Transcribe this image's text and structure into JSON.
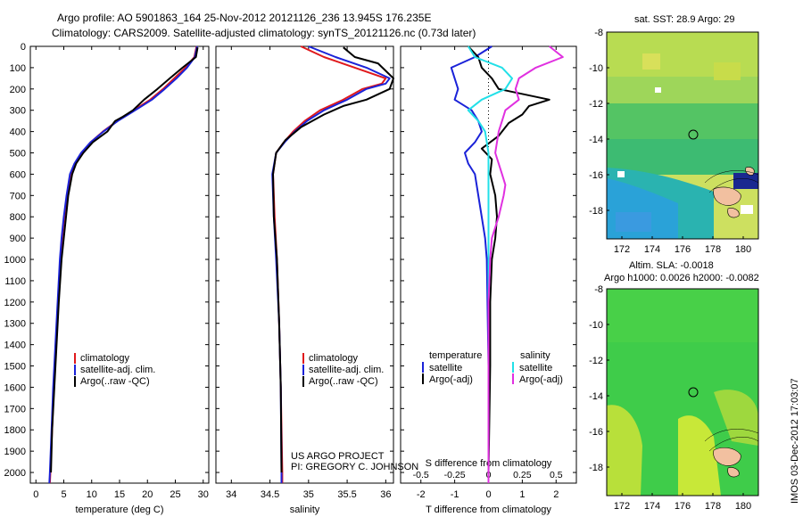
{
  "header": {
    "line1": "Argo profile: AO 5901863_164 25-Nov-2012 20121126_236 13.945S 176.235E",
    "line2": "Climatology: CARS2009. Satellite-adjusted climatology: synTS_20121126.nc (0.73d later)"
  },
  "colors": {
    "climatology": "#e0191c",
    "satellite": "#1a22d8",
    "argo": "#000000",
    "sat_salinity": "#22e0e8",
    "argo_salinity": "#e030e0"
  },
  "depth_axis": {
    "range": [
      0,
      2050
    ],
    "ticks": [
      0,
      100,
      200,
      300,
      400,
      500,
      600,
      700,
      800,
      900,
      1000,
      1100,
      1200,
      1300,
      1400,
      1500,
      1600,
      1700,
      1800,
      1900,
      2000
    ]
  },
  "chart_data": [
    {
      "type": "line",
      "xlabel": "temperature (deg C)",
      "xlim": [
        -1,
        31
      ],
      "xticks": [
        0,
        5,
        10,
        15,
        20,
        25,
        30
      ],
      "legend": {
        "position": "lower-left",
        "entries": [
          "climatology",
          "satellite-adj. clim.",
          "Argo(..raw -QC)"
        ]
      },
      "series": [
        {
          "name": "climatology",
          "color": "#e0191c",
          "points": [
            [
              28.8,
              0
            ],
            [
              28.4,
              50
            ],
            [
              26.8,
              100
            ],
            [
              24.8,
              150
            ],
            [
              22.8,
              200
            ],
            [
              20.5,
              250
            ],
            [
              17.5,
              300
            ],
            [
              14.6,
              350
            ],
            [
              12.0,
              400
            ],
            [
              9.8,
              450
            ],
            [
              8.2,
              500
            ],
            [
              7.0,
              550
            ],
            [
              6.2,
              600
            ],
            [
              5.6,
              700
            ],
            [
              5.1,
              800
            ],
            [
              4.7,
              900
            ],
            [
              4.4,
              1000
            ],
            [
              4.0,
              1200
            ],
            [
              3.6,
              1400
            ],
            [
              3.2,
              1600
            ],
            [
              2.9,
              1800
            ],
            [
              2.6,
              2000
            ],
            [
              2.5,
              2050
            ]
          ]
        },
        {
          "name": "satellite-adj. clim.",
          "color": "#1a22d8",
          "points": [
            [
              28.9,
              0
            ],
            [
              28.5,
              50
            ],
            [
              27.1,
              100
            ],
            [
              25.2,
              150
            ],
            [
              23.1,
              200
            ],
            [
              20.8,
              250
            ],
            [
              17.8,
              300
            ],
            [
              14.7,
              350
            ],
            [
              12.1,
              400
            ],
            [
              9.8,
              450
            ],
            [
              8.1,
              500
            ],
            [
              6.9,
              550
            ],
            [
              6.1,
              600
            ],
            [
              5.5,
              700
            ],
            [
              5.0,
              800
            ],
            [
              4.6,
              900
            ],
            [
              4.3,
              1000
            ],
            [
              3.9,
              1200
            ],
            [
              3.5,
              1400
            ],
            [
              3.1,
              1600
            ],
            [
              2.8,
              1800
            ],
            [
              2.5,
              2000
            ],
            [
              2.4,
              2050
            ]
          ]
        },
        {
          "name": "Argo(..raw -QC)",
          "color": "#000000",
          "points": [
            [
              29.0,
              5
            ],
            [
              28.7,
              50
            ],
            [
              26.3,
              100
            ],
            [
              24.0,
              150
            ],
            [
              21.8,
              200
            ],
            [
              19.4,
              250
            ],
            [
              17.4,
              300
            ],
            [
              15.6,
              330
            ],
            [
              14.2,
              350
            ],
            [
              12.8,
              400
            ],
            [
              10.2,
              450
            ],
            [
              8.5,
              500
            ],
            [
              7.2,
              550
            ],
            [
              6.5,
              600
            ],
            [
              5.8,
              700
            ],
            [
              5.4,
              800
            ],
            [
              5.0,
              900
            ],
            [
              4.6,
              1000
            ],
            [
              4.1,
              1200
            ],
            [
              3.7,
              1400
            ],
            [
              3.3,
              1600
            ],
            [
              2.9,
              1800
            ],
            [
              2.7,
              2000
            ]
          ]
        }
      ]
    },
    {
      "type": "line",
      "xlabel": "salinity",
      "xlim": [
        33.8,
        36.1
      ],
      "xticks": [
        34,
        34.5,
        35,
        35.5,
        36
      ],
      "legend": {
        "position": "lower-right",
        "entries": [
          "climatology",
          "satellite-adj. clim.",
          "Argo(..raw -QC)"
        ]
      },
      "annotation": [
        "US ARGO PROJECT",
        "PI: GREGORY C. JOHNSON"
      ],
      "series": [
        {
          "name": "climatology",
          "color": "#e0191c",
          "points": [
            [
              34.9,
              0
            ],
            [
              35.2,
              50
            ],
            [
              35.6,
              100
            ],
            [
              36.0,
              150
            ],
            [
              35.95,
              175
            ],
            [
              35.7,
              200
            ],
            [
              35.45,
              250
            ],
            [
              35.15,
              300
            ],
            [
              34.95,
              350
            ],
            [
              34.8,
              400
            ],
            [
              34.68,
              450
            ],
            [
              34.58,
              500
            ],
            [
              34.54,
              600
            ],
            [
              34.56,
              800
            ],
            [
              34.59,
              1000
            ],
            [
              34.62,
              1300
            ],
            [
              34.64,
              1600
            ],
            [
              34.66,
              2000
            ],
            [
              34.66,
              2050
            ]
          ]
        },
        {
          "name": "satellite-adj. clim.",
          "color": "#1a22d8",
          "points": [
            [
              35.0,
              0
            ],
            [
              35.35,
              50
            ],
            [
              35.75,
              100
            ],
            [
              36.05,
              150
            ],
            [
              36.0,
              175
            ],
            [
              35.75,
              200
            ],
            [
              35.5,
              250
            ],
            [
              35.2,
              300
            ],
            [
              34.98,
              350
            ],
            [
              34.82,
              400
            ],
            [
              34.69,
              450
            ],
            [
              34.58,
              500
            ],
            [
              34.53,
              600
            ],
            [
              34.55,
              800
            ],
            [
              34.58,
              1000
            ],
            [
              34.62,
              1300
            ],
            [
              34.64,
              1600
            ],
            [
              34.65,
              2000
            ],
            [
              34.65,
              2050
            ]
          ]
        },
        {
          "name": "Argo(..raw -QC)",
          "color": "#000000",
          "points": [
            [
              35.45,
              5
            ],
            [
              35.6,
              50
            ],
            [
              35.9,
              80
            ],
            [
              36.1,
              150
            ],
            [
              36.05,
              200
            ],
            [
              35.75,
              250
            ],
            [
              35.45,
              280
            ],
            [
              35.2,
              320
            ],
            [
              34.9,
              380
            ],
            [
              34.7,
              440
            ],
            [
              34.58,
              500
            ],
            [
              34.54,
              600
            ],
            [
              34.55,
              800
            ],
            [
              34.59,
              1000
            ],
            [
              34.62,
              1300
            ],
            [
              34.64,
              1600
            ],
            [
              34.65,
              2000
            ]
          ]
        }
      ]
    },
    {
      "type": "line",
      "xlabel": "T difference from climatology",
      "xlabel_top": "S difference from climatology",
      "xlim": [
        -2.6,
        2.6
      ],
      "xticks": [
        -2,
        -1,
        0,
        1,
        2
      ],
      "xticks_s": [
        -0.5,
        -0.25,
        0,
        0.25,
        0.5
      ],
      "legend": {
        "position": "lower-center",
        "temperature": "temperature",
        "salinity": "salinity",
        "entries": [
          "satellite",
          "Argo(-adj)",
          "satellite",
          "Argo(-adj)"
        ]
      },
      "series": [
        {
          "name": "satellite",
          "color": "#1a22d8",
          "points": [
            [
              0.1,
              0
            ],
            [
              -0.4,
              50
            ],
            [
              -1.1,
              100
            ],
            [
              -1.0,
              150
            ],
            [
              -0.9,
              200
            ],
            [
              -1.0,
              250
            ],
            [
              -0.5,
              300
            ],
            [
              -0.3,
              350
            ],
            [
              -0.2,
              400
            ],
            [
              -0.4,
              450
            ],
            [
              -0.7,
              500
            ],
            [
              -0.6,
              550
            ],
            [
              -0.4,
              600
            ],
            [
              -0.3,
              700
            ],
            [
              -0.2,
              800
            ],
            [
              -0.1,
              900
            ],
            [
              -0.05,
              1000
            ],
            [
              0,
              1500
            ],
            [
              0,
              2050
            ]
          ]
        },
        {
          "name": "Argo(-adj)",
          "color": "#000000",
          "points": [
            [
              -0.6,
              0
            ],
            [
              -0.3,
              50
            ],
            [
              -0.2,
              100
            ],
            [
              0.1,
              150
            ],
            [
              0.3,
              200
            ],
            [
              1.8,
              250
            ],
            [
              1.2,
              280
            ],
            [
              1.0,
              320
            ],
            [
              0.6,
              360
            ],
            [
              0.3,
              420
            ],
            [
              -0.2,
              480
            ],
            [
              0.1,
              530
            ],
            [
              0.05,
              600
            ],
            [
              0.2,
              700
            ],
            [
              0.25,
              800
            ],
            [
              0.2,
              900
            ],
            [
              0.1,
              1000
            ],
            [
              0.05,
              1200
            ],
            [
              0.05,
              1500
            ],
            [
              0,
              2000
            ]
          ]
        },
        {
          "name": "satellite",
          "color": "#22e0e8",
          "points": [
            [
              -0.6,
              0
            ],
            [
              -0.4,
              50
            ],
            [
              0.4,
              100
            ],
            [
              0.7,
              150
            ],
            [
              0.5,
              200
            ],
            [
              -0.2,
              250
            ],
            [
              -0.6,
              300
            ],
            [
              -0.3,
              350
            ],
            [
              -0.1,
              400
            ],
            [
              0,
              500
            ],
            [
              0,
              2050
            ]
          ]
        },
        {
          "name": "Argo(-adj)",
          "color": "#e030e0",
          "points": [
            [
              1.8,
              0
            ],
            [
              2.2,
              50
            ],
            [
              1.4,
              100
            ],
            [
              0.9,
              150
            ],
            [
              0.8,
              200
            ],
            [
              0.9,
              250
            ],
            [
              0.5,
              300
            ],
            [
              0.4,
              350
            ],
            [
              0.3,
              400
            ],
            [
              0.2,
              500
            ],
            [
              0.4,
              600
            ],
            [
              0.5,
              650
            ],
            [
              0.45,
              700
            ],
            [
              0.3,
              800
            ],
            [
              0.1,
              900
            ],
            [
              0.05,
              1000
            ],
            [
              0,
              1200
            ],
            [
              0,
              2050
            ]
          ]
        }
      ]
    }
  ],
  "maps": [
    {
      "title": "sat. SST: 28.9 Argo: 29",
      "lon_range": [
        171,
        181
      ],
      "lat_range": [
        -19.6,
        -8
      ],
      "lon_ticks": [
        172,
        174,
        176,
        178,
        180
      ],
      "lat_ticks": [
        -8,
        -10,
        -12,
        -14,
        -16,
        -18
      ]
    },
    {
      "title_line1": "Altim. SLA: -0.0018",
      "title_line2": "Argo h1000: 0.0026 h2000: -0.0082",
      "lon_range": [
        171,
        181
      ],
      "lat_range": [
        -19.6,
        -8
      ],
      "lon_ticks": [
        172,
        174,
        176,
        178,
        180
      ],
      "lat_ticks": [
        -8,
        -10,
        -12,
        -14,
        -16,
        -18
      ]
    }
  ],
  "side_stamp": "IMOS 03-Dec-2012 17:03:07"
}
